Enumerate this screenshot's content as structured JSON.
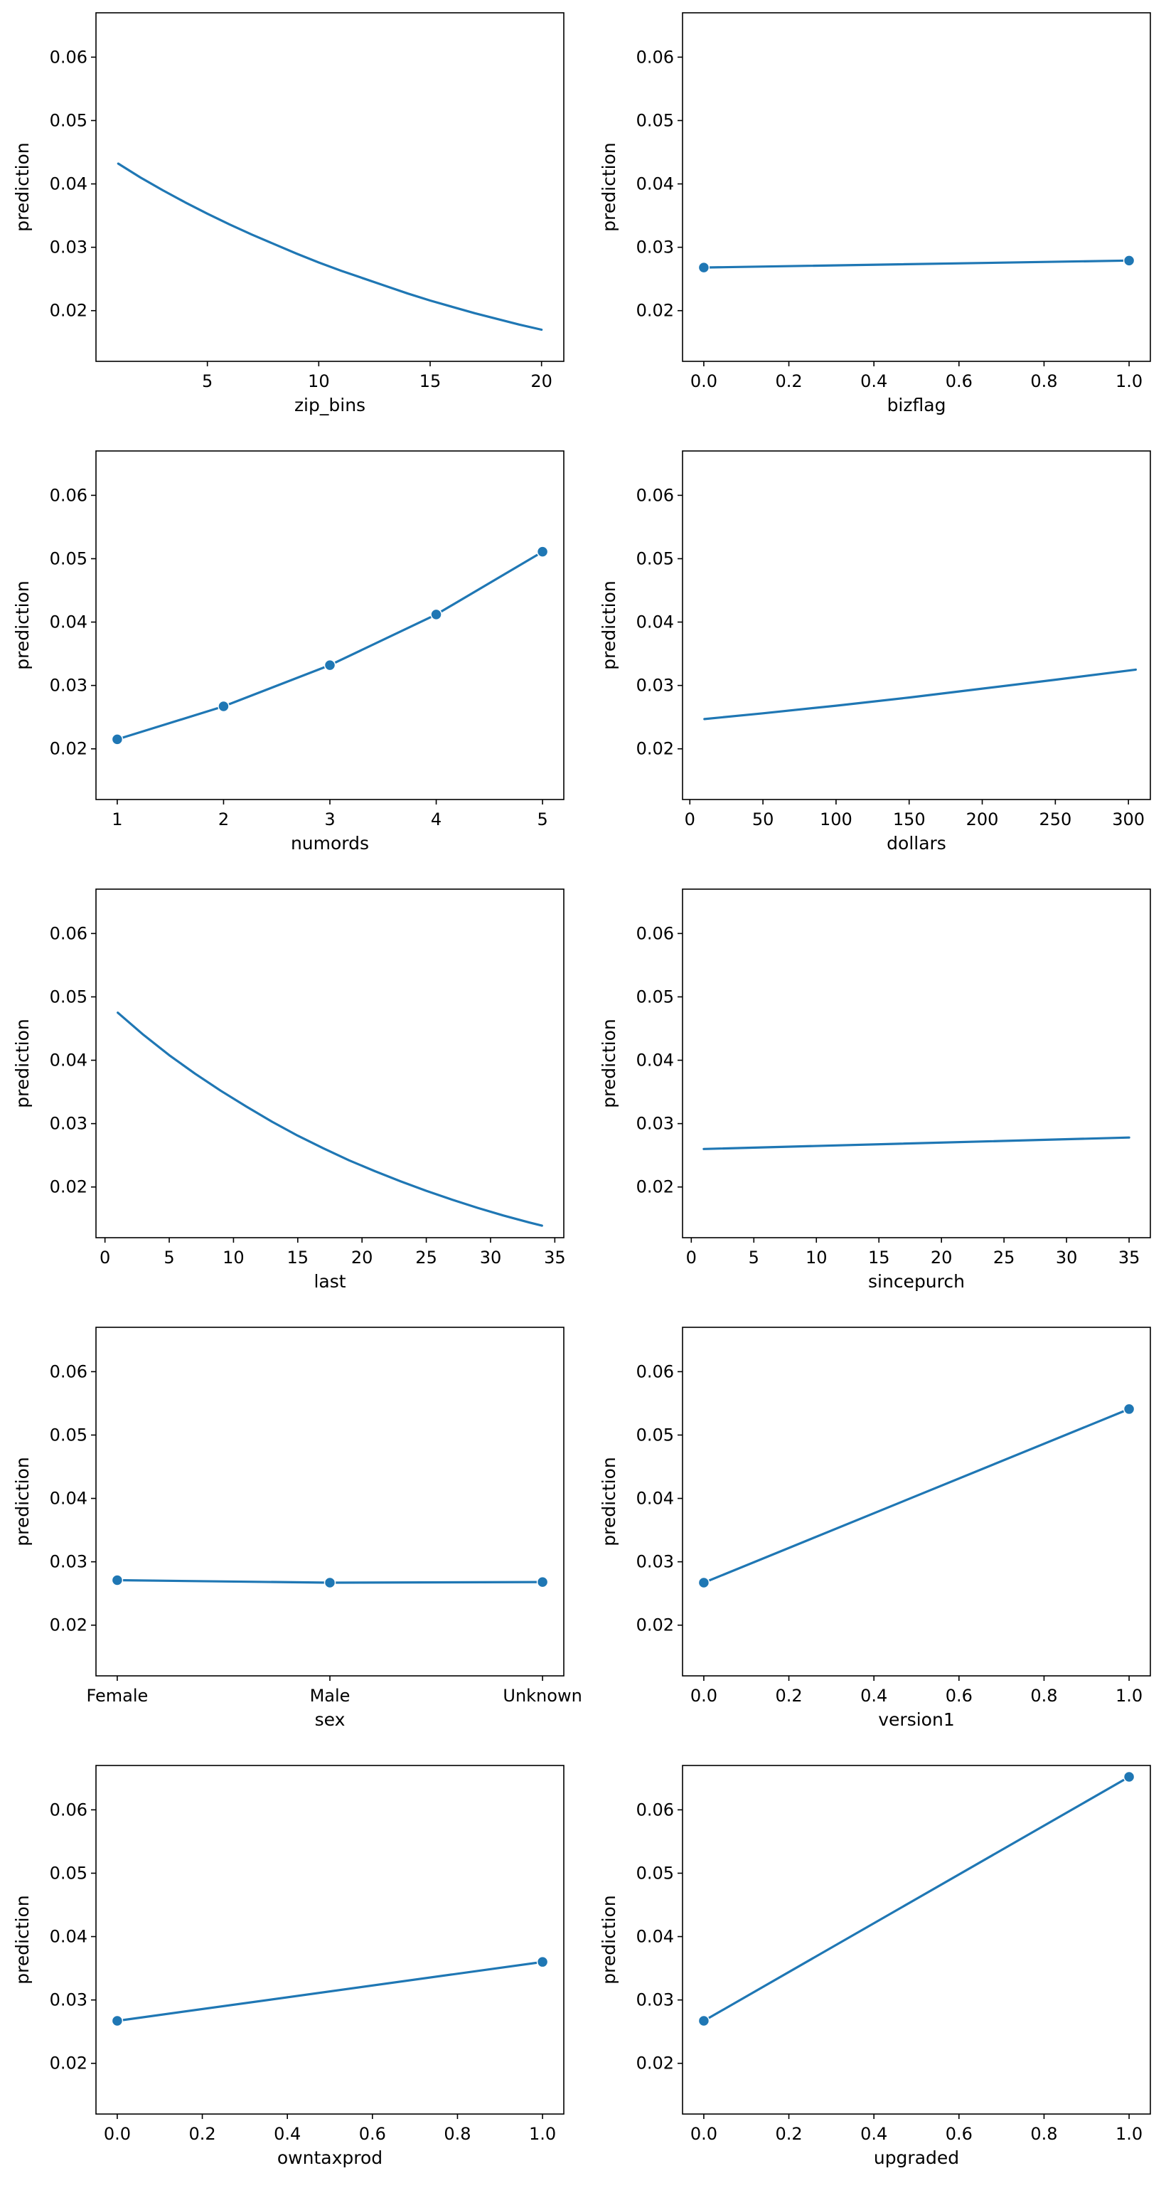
{
  "figure": {
    "line_color": "#1f77b4",
    "shared_ylim": [
      0.012,
      0.067
    ],
    "y_ticks": [
      0.02,
      0.03,
      0.04,
      0.05,
      0.06
    ],
    "y_tick_labels": [
      "0.02",
      "0.03",
      "0.04",
      "0.05",
      "0.06"
    ]
  },
  "chart_data": [
    {
      "type": "line",
      "xlabel": "zip_bins",
      "ylabel": "prediction",
      "xlim": [
        0,
        21
      ],
      "ylim": [
        0.012,
        0.067
      ],
      "markers": false,
      "x": [
        1,
        2,
        3,
        4,
        5,
        6,
        7,
        8,
        9,
        10,
        11,
        12,
        13,
        14,
        15,
        16,
        17,
        18,
        19,
        20
      ],
      "y": [
        0.0432,
        0.041,
        0.039,
        0.0371,
        0.0353,
        0.0336,
        0.032,
        0.0305,
        0.029,
        0.0276,
        0.0263,
        0.0251,
        0.0239,
        0.0227,
        0.0216,
        0.0206,
        0.0196,
        0.0187,
        0.0178,
        0.017
      ],
      "x_ticks": [
        5,
        10,
        15,
        20
      ]
    },
    {
      "type": "line",
      "xlabel": "bizflag",
      "ylabel": "prediction",
      "xlim": [
        -0.05,
        1.05
      ],
      "ylim": [
        0.012,
        0.067
      ],
      "markers": true,
      "x": [
        0,
        1
      ],
      "y": [
        0.0268,
        0.0279
      ],
      "x_ticks": [
        0,
        0.2,
        0.4,
        0.6,
        0.8,
        1.0
      ],
      "x_tick_labels": [
        "0.0",
        "0.2",
        "0.4",
        "0.6",
        "0.8",
        "1.0"
      ]
    },
    {
      "type": "line",
      "xlabel": "numords",
      "ylabel": "prediction",
      "xlim": [
        0.8,
        5.2
      ],
      "ylim": [
        0.012,
        0.067
      ],
      "markers": true,
      "x": [
        1,
        2,
        3,
        4,
        5
      ],
      "y": [
        0.0215,
        0.0267,
        0.0332,
        0.0412,
        0.0511
      ],
      "x_ticks": [
        1,
        2,
        3,
        4,
        5
      ]
    },
    {
      "type": "line",
      "xlabel": "dollars",
      "ylabel": "prediction",
      "xlim": [
        -5,
        315
      ],
      "ylim": [
        0.012,
        0.067
      ],
      "markers": false,
      "x": [
        10,
        50,
        100,
        150,
        200,
        250,
        305
      ],
      "y": [
        0.0247,
        0.0256,
        0.0268,
        0.0281,
        0.0295,
        0.0309,
        0.0325
      ],
      "x_ticks": [
        0,
        50,
        100,
        150,
        200,
        250,
        300
      ]
    },
    {
      "type": "line",
      "xlabel": "last",
      "ylabel": "prediction",
      "xlim": [
        -0.7,
        35.7
      ],
      "ylim": [
        0.012,
        0.067
      ],
      "markers": false,
      "x": [
        1,
        3,
        5,
        7,
        9,
        11,
        13,
        15,
        17,
        19,
        21,
        23,
        25,
        27,
        29,
        31,
        33,
        34
      ],
      "y": [
        0.0475,
        0.044,
        0.0408,
        0.0379,
        0.0352,
        0.0327,
        0.0303,
        0.0281,
        0.0261,
        0.0242,
        0.0225,
        0.0209,
        0.0194,
        0.018,
        0.0167,
        0.0155,
        0.0144,
        0.0139
      ],
      "x_ticks": [
        0,
        5,
        10,
        15,
        20,
        25,
        30,
        35
      ]
    },
    {
      "type": "line",
      "xlabel": "sincepurch",
      "ylabel": "prediction",
      "xlim": [
        -0.7,
        36.7
      ],
      "ylim": [
        0.012,
        0.067
      ],
      "markers": false,
      "x": [
        1,
        35
      ],
      "y": [
        0.026,
        0.0278
      ],
      "x_ticks": [
        0,
        5,
        10,
        15,
        20,
        25,
        30,
        35
      ]
    },
    {
      "type": "line",
      "xlabel": "sex",
      "ylabel": "prediction",
      "xlim": [
        -0.1,
        2.1
      ],
      "ylim": [
        0.012,
        0.067
      ],
      "markers": true,
      "categories": [
        "Female",
        "Male",
        "Unknown"
      ],
      "x": [
        0,
        1,
        2
      ],
      "y": [
        0.0271,
        0.0267,
        0.0268
      ],
      "x_ticks": [
        0,
        1,
        2
      ],
      "x_tick_labels": [
        "Female",
        "Male",
        "Unknown"
      ]
    },
    {
      "type": "line",
      "xlabel": "version1",
      "ylabel": "prediction",
      "xlim": [
        -0.05,
        1.05
      ],
      "ylim": [
        0.012,
        0.067
      ],
      "markers": true,
      "x": [
        0,
        1
      ],
      "y": [
        0.0267,
        0.0541
      ],
      "x_ticks": [
        0,
        0.2,
        0.4,
        0.6,
        0.8,
        1.0
      ],
      "x_tick_labels": [
        "0.0",
        "0.2",
        "0.4",
        "0.6",
        "0.8",
        "1.0"
      ]
    },
    {
      "type": "line",
      "xlabel": "owntaxprod",
      "ylabel": "prediction",
      "xlim": [
        -0.05,
        1.05
      ],
      "ylim": [
        0.012,
        0.067
      ],
      "markers": true,
      "x": [
        0,
        1
      ],
      "y": [
        0.0267,
        0.036
      ],
      "x_ticks": [
        0,
        0.2,
        0.4,
        0.6,
        0.8,
        1.0
      ],
      "x_tick_labels": [
        "0.0",
        "0.2",
        "0.4",
        "0.6",
        "0.8",
        "1.0"
      ]
    },
    {
      "type": "line",
      "xlabel": "upgraded",
      "ylabel": "prediction",
      "xlim": [
        -0.05,
        1.05
      ],
      "ylim": [
        0.012,
        0.067
      ],
      "markers": true,
      "x": [
        0,
        1
      ],
      "y": [
        0.0267,
        0.0652
      ],
      "x_ticks": [
        0,
        0.2,
        0.4,
        0.6,
        0.8,
        1.0
      ],
      "x_tick_labels": [
        "0.0",
        "0.2",
        "0.4",
        "0.6",
        "0.8",
        "1.0"
      ]
    }
  ]
}
